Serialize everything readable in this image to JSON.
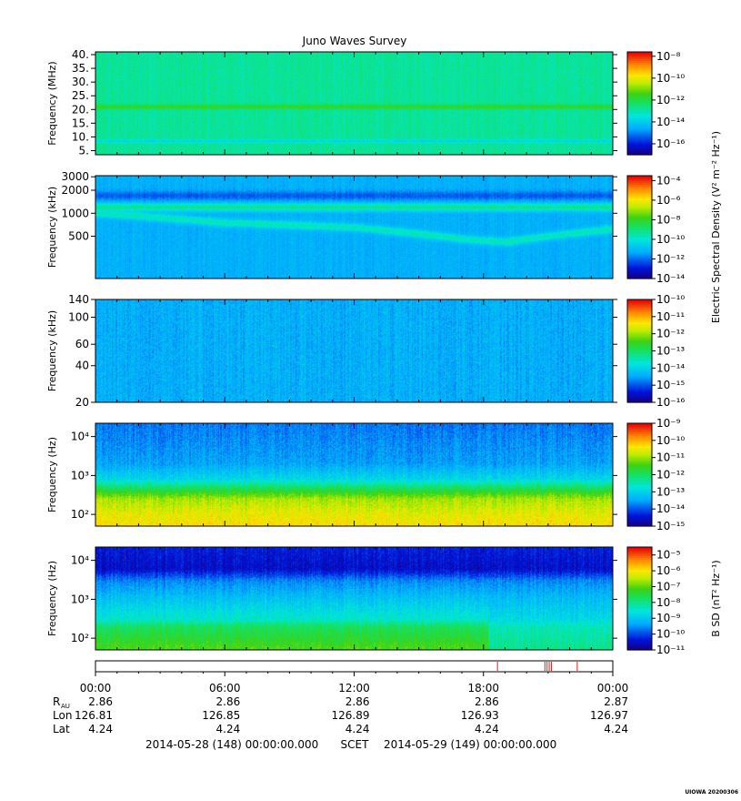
{
  "title": "Juno Waves Survey",
  "footer": {
    "stamp": "UIOWA 20200306"
  },
  "chart_data": [
    {
      "type": "heatmap",
      "panel": "1",
      "ylabel": "Frequency (MHz)",
      "yscale": "linear",
      "ylim": [
        3.5,
        41
      ],
      "y_ticks": [
        "5.",
        "10.",
        "15.",
        "20.",
        "25.",
        "30.",
        "35.",
        "40."
      ],
      "y_tick_values": [
        5,
        10,
        15,
        20,
        25,
        30,
        35,
        40
      ],
      "colorbar": {
        "label": "",
        "min_exp": -17,
        "max_exp": -7.6,
        "tick_exps": [
          -16,
          -14,
          -12,
          -10,
          -8
        ]
      },
      "background_level_exp": -12.8,
      "bands": [
        {
          "y": 21.0,
          "level_exp": -11.5,
          "width": 0.8
        },
        {
          "y": 8.5,
          "level_exp": -13.8,
          "width": 0.6
        }
      ]
    },
    {
      "type": "heatmap",
      "panel": "2",
      "ylabel": "Frequency (kHz)",
      "yscale": "log",
      "ylim": [
        140,
        3100
      ],
      "y_ticks": [
        "500",
        "1000",
        "2000",
        "3000"
      ],
      "y_tick_values": [
        500,
        1000,
        2000,
        3000
      ],
      "colorbar": {
        "label": "Electric Spectral Density (V² m⁻² Hz⁻¹)",
        "min_exp": -14,
        "max_exp": -3.5,
        "tick_exps": [
          -14,
          -12,
          -10,
          -8,
          -6,
          -4
        ]
      },
      "background_level_exp": -11.2,
      "bands": [
        {
          "y": 1700,
          "level_exp": -12.2,
          "width": 0.06
        },
        {
          "y": 1200,
          "level_exp": -9.2,
          "width": 0.05
        },
        {
          "y_path": [
            [
              0,
              1000
            ],
            [
              6,
              750
            ],
            [
              12,
              650
            ],
            [
              17,
              460
            ],
            [
              19,
              420
            ],
            [
              24,
              620
            ]
          ],
          "level_exp": -9.6,
          "width": 0.05
        }
      ]
    },
    {
      "type": "heatmap",
      "panel": "3",
      "ylabel": "Frequency (kHz)",
      "yscale": "log",
      "ylim": [
        20,
        140
      ],
      "y_ticks": [
        "20",
        "40",
        "60",
        "100",
        "140"
      ],
      "y_tick_values": [
        20,
        40,
        60,
        100,
        140
      ],
      "colorbar": {
        "label": "",
        "min_exp": -16,
        "max_exp": -10,
        "tick_exps": [
          -16,
          -15,
          -14,
          -13,
          -12,
          -11,
          -10
        ]
      },
      "background_level_exp": -14.4,
      "bands": []
    },
    {
      "type": "heatmap",
      "panel": "4",
      "ylabel": "Frequency (Hz)",
      "yscale": "log",
      "ylim": [
        50,
        22000
      ],
      "y_ticks": [
        "10²",
        "10³",
        "10⁴"
      ],
      "y_tick_values": [
        100,
        1000,
        10000
      ],
      "colorbar": {
        "label": "",
        "min_exp": -15,
        "max_exp": -9,
        "tick_exps": [
          -15,
          -14,
          -13,
          -12,
          -11,
          -10,
          -9
        ]
      },
      "profile": [
        [
          50,
          -10.3
        ],
        [
          100,
          -10.5
        ],
        [
          250,
          -10.9
        ],
        [
          500,
          -12.0
        ],
        [
          800,
          -12.9
        ],
        [
          2000,
          -13.5
        ],
        [
          22000,
          -13.8
        ]
      ],
      "bands": []
    },
    {
      "type": "heatmap",
      "panel": "5",
      "ylabel": "Frequency (Hz)",
      "yscale": "log",
      "ylim": [
        50,
        22000
      ],
      "y_ticks": [
        "10²",
        "10³",
        "10⁴"
      ],
      "y_tick_values": [
        100,
        1000,
        10000
      ],
      "colorbar": {
        "label": "B SD (nT² Hz⁻¹)",
        "min_exp": -11,
        "max_exp": -4.5,
        "tick_exps": [
          -11,
          -10,
          -9,
          -8,
          -7,
          -6,
          -5
        ]
      },
      "profile": [
        [
          50,
          -7.0
        ],
        [
          200,
          -7.7
        ],
        [
          300,
          -8.4
        ],
        [
          1000,
          -9.0
        ],
        [
          3000,
          -9.6
        ],
        [
          6000,
          -10.5
        ],
        [
          22000,
          -10.3
        ]
      ],
      "profile_after": [
        [
          50,
          -8.0
        ],
        [
          200,
          -8.3
        ],
        [
          300,
          -8.7
        ],
        [
          1000,
          -9.1
        ],
        [
          3000,
          -9.6
        ],
        [
          6000,
          -10.5
        ],
        [
          22000,
          -10.3
        ]
      ],
      "change_hour": 18.2,
      "bands": []
    }
  ],
  "event_strip": {
    "color": "#d22020",
    "events_hours": [
      18.65,
      20.85,
      20.95,
      21.05,
      21.15,
      22.35
    ]
  },
  "time_axis": {
    "tick_labels": [
      "00:00",
      "06:00",
      "12:00",
      "18:00",
      "00:00"
    ],
    "tick_hours": [
      0,
      6,
      12,
      18,
      24
    ],
    "rows": [
      {
        "label": "R",
        "sub": "AU",
        "values": [
          "2.86",
          "2.86",
          "2.86",
          "2.86",
          "2.87"
        ]
      },
      {
        "label": "Lon",
        "sub": "",
        "values": [
          "126.81",
          "126.85",
          "126.89",
          "126.93",
          "126.97"
        ]
      },
      {
        "label": "Lat",
        "sub": "",
        "values": [
          "4.24",
          "4.24",
          "4.24",
          "4.24",
          "4.24"
        ]
      }
    ],
    "start": "2014-05-28 (148) 00:00:00.000",
    "center": "SCET",
    "end": "2014-05-29 (149) 00:00:00.000"
  }
}
